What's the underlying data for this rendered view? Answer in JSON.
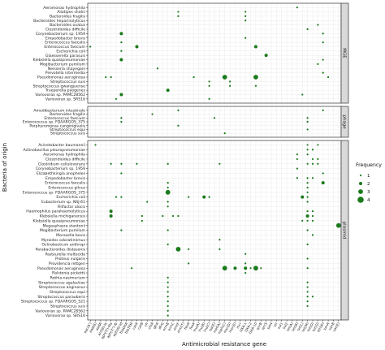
{
  "chart_data": {
    "type": "scatter",
    "xlabel": "Antimicrobial resistance gene",
    "ylabel": "Bacteria of origin",
    "legend": {
      "title": "Frequency",
      "placement": "right",
      "values": [
        "1",
        "2",
        "3",
        "4"
      ]
    },
    "colors": {
      "point": "#1b7a1b",
      "strip": "#d9d9d9",
      "panel_border": "#333333",
      "grid": "#ebebeb"
    },
    "x_categories": [
      "aac(6')",
      "aad(6)",
      "aadA",
      "ant(6)-Ia",
      "aph(3')-IIIa",
      "aph(3'')-Ib",
      "aph(6)-Id",
      "blaOXA",
      "blaTEM",
      "catA",
      "catB",
      "cfr",
      "cfxA",
      "dfrA",
      "dfrG",
      "ermB",
      "ermC",
      "ermF",
      "erm(T)",
      "fexA",
      "fosA",
      "lnu(A)",
      "lnu(B)",
      "lnu(C)",
      "lsa(E)",
      "mef(A)",
      "mph(C)",
      "msr(D)",
      "msr(E)",
      "mcr",
      "OXA-1",
      "OXA-2",
      "OXA-10",
      "qnrB",
      "qnrS",
      "sat4",
      "str",
      "sul1",
      "sul2",
      "tet(A)",
      "tet(B)",
      "tet(L)",
      "tet(M)",
      "tet(O)",
      "tet(Q)",
      "tet(W)",
      "vanA",
      "vanB",
      "vat(E)"
    ],
    "facets": [
      {
        "name": "MGE",
        "rows": [
          "Aeromonas hydrophila",
          "Aliatipes shahii",
          "Bacteroides fragilis",
          "Bacteroides heparinolyticus",
          "Bacteroides ovatus",
          "Clostridioides difficile",
          "Corynebacterium sp. 1959",
          "Empedobacter brevis",
          "Enterococcus faecalis",
          "Enterococcus faecium",
          "Escherichia coli",
          "Glaesserella parasuis",
          "Klebsiella quasipneumoniae",
          "Mogibacterium pumilum",
          "Neisseria shayegani",
          "Prevotella intermedia",
          "Pseudomonas aeruginosa",
          "Streptococcus suis",
          "Streptococcus gwangjuense",
          "Trueperella pyogenes",
          "Variovorax sp. PAMC28562",
          "Variovorax sp. SRS16"
        ],
        "points": [
          [
            "Aeromonas hydrophila",
            "tet(B)",
            1
          ],
          [
            "Aliatipes shahii",
            "ermF",
            1
          ],
          [
            "Aliatipes shahii",
            "OXA-1",
            1
          ],
          [
            "Bacteroides fragilis",
            "ermF",
            1
          ],
          [
            "Bacteroides fragilis",
            "OXA-1",
            1
          ],
          [
            "Bacteroides heparinolyticus",
            "OXA-1",
            1
          ],
          [
            "Bacteroides ovatus",
            "tet(Q)",
            1
          ],
          [
            "Clostridioides difficile",
            "tet(M)",
            1
          ],
          [
            "Corynebacterium sp. 1959",
            "aph(6)-Id",
            2
          ],
          [
            "Corynebacterium sp. 1959",
            "tet(W)",
            1
          ],
          [
            "Empedobacter brevis",
            "OXA-1",
            1
          ],
          [
            "Enterococcus faecalis",
            "aph(6)-Id",
            1
          ],
          [
            "Enterococcus faecalis",
            "tet(W)",
            1
          ],
          [
            "Enterococcus faecium",
            "aac(6')",
            1
          ],
          [
            "Enterococcus faecium",
            "catA",
            2
          ],
          [
            "Enterococcus faecium",
            "OXA-10",
            2
          ],
          [
            "Escherichia coli",
            "aph(6)-Id",
            1
          ],
          [
            "Glaesserella parasuis",
            "qnrS",
            2
          ],
          [
            "Klebsiella quasipneumoniae",
            "aph(6)-Id",
            2
          ],
          [
            "Klebsiella quasipneumoniae",
            "tet(W)",
            1
          ],
          [
            "Mogibacterium pumilum",
            "tet(Q)",
            1
          ],
          [
            "Neisseria shayegani",
            "dfrA",
            1
          ],
          [
            "Prevotella intermedia",
            "tet(W)",
            1
          ],
          [
            "Pseudomonas aeruginosa",
            "ant(6)-Ia",
            1
          ],
          [
            "Pseudomonas aeruginosa",
            "aph(3')-IIIa",
            1
          ],
          [
            "Pseudomonas aeruginosa",
            "fosA",
            1
          ],
          [
            "Pseudomonas aeruginosa",
            "mph(C)",
            3
          ],
          [
            "Pseudomonas aeruginosa",
            "OXA-10",
            3
          ],
          [
            "Pseudomonas aeruginosa",
            "vanA",
            1
          ],
          [
            "Streptococcus suis",
            "lnu(C)",
            1
          ],
          [
            "Streptococcus suis",
            "msr(D)",
            1
          ],
          [
            "Streptococcus gwangjuense",
            "lnu(C)",
            1
          ],
          [
            "Streptococcus gwangjuense",
            "msr(D)",
            1
          ],
          [
            "Streptococcus gwangjuense",
            "OXA-10",
            1
          ],
          [
            "Trueperella pyogenes",
            "ermB",
            2
          ],
          [
            "Variovorax sp. PAMC28562",
            "aph(6)-Id",
            2
          ],
          [
            "Variovorax sp. PAMC28562",
            "tet(L)",
            1
          ],
          [
            "Variovorax sp. SRS16",
            "aph(3'')-Ib",
            1
          ],
          [
            "Variovorax sp. SRS16",
            "lnu(C)",
            1
          ]
        ]
      },
      {
        "name": "phage",
        "rows": [
          "Amedibacterium intestinale",
          "Bacteroides fragilis",
          "Enterococcus faecium",
          "Enterococcus sp. FDAARGOS_375",
          "Porphyromonas canginigivalis",
          "Streptococcus equi",
          "Streptococcus suis"
        ],
        "points": [
          [
            "Amedibacterium intestinale",
            "ermF",
            1
          ],
          [
            "Amedibacterium intestinale",
            "tet(W)",
            1
          ],
          [
            "Bacteroides fragilis",
            "cfxA",
            1
          ],
          [
            "Enterococcus faecium",
            "aph(6)-Id",
            1
          ],
          [
            "Enterococcus faecium",
            "lsa(E)",
            1
          ],
          [
            "Enterococcus faecium",
            "tet(M)",
            1
          ],
          [
            "Enterococcus sp. FDAARGOS_375",
            "aph(6)-Id",
            1
          ],
          [
            "Enterococcus sp. FDAARGOS_375",
            "tet(M)",
            1
          ],
          [
            "Porphyromonas canginigivalis",
            "ermF",
            1
          ],
          [
            "Streptococcus equi",
            "tet(M)",
            1
          ],
          [
            "Streptococcus suis",
            "mph(C)",
            1
          ]
        ]
      },
      {
        "name": "plasmid",
        "rows": [
          "Acinetobacter baumannii",
          "Actinobacillus pleuropneumoniae",
          "Aeromonas hydrophila",
          "Clostridioides difficile",
          "Clostridium cellulovorans",
          "Corynebacterium sp. 1959",
          "Elizabethkingia anopheles",
          "Empedobacter brevis",
          "Enterococcus faecalis",
          "Enterococcus gilvus",
          "Enterococcus sp. FDAARGOS_375",
          "Escherichia coli",
          "Eubacterium sp. NSJ-61",
          "Filifactor alocis",
          "Haemophilus parahaemolyticus",
          "Klebsiella michiganensis",
          "Klebsiella quasipneumoniae",
          "Megasphaera stantonii",
          "Mogibacterium pumilum",
          "Moraxella bovis",
          "Myroides odoratimimus",
          "Ochrobactrum anthropi",
          "Parabacteroides distasonis",
          "Pasteurella multocida",
          "Proteus vulgaris",
          "Providencia rettgeri",
          "Pseudomonas aeruginosa",
          "Ralstonia pickettii",
          "Rothia nasimurium",
          "Streptococcus agalactiae",
          "Streptococcus anginosus",
          "Streptococcus equi",
          "Streptococcus parauberis",
          "Streptococcus sp. FDAARGOS_521",
          "Streptococcus suis",
          "Variovorax sp. PAMC28562",
          "Variovorax sp. SRS16"
        ],
        "points": [
          [
            "Acinetobacter baumannii",
            "aad(6)",
            1
          ],
          [
            "Acinetobacter baumannii",
            "tet(M)",
            1
          ],
          [
            "Acinetobacter baumannii",
            "tet(Q)",
            1
          ],
          [
            "Actinobacillus pleuropneumoniae",
            "tet(M)",
            1
          ],
          [
            "Actinobacillus pleuropneumoniae",
            "tet(O)",
            1
          ],
          [
            "Aeromonas hydrophila",
            "tet(B)",
            1
          ],
          [
            "Aeromonas hydrophila",
            "tet(M)",
            1
          ],
          [
            "Clostridioides difficile",
            "tet(B)",
            1
          ],
          [
            "Clostridioides difficile",
            "tet(O)",
            1
          ],
          [
            "Clostridioides difficile",
            "tet(Q)",
            1
          ],
          [
            "Clostridium cellulovorans",
            "aph(3')-IIIa",
            1
          ],
          [
            "Clostridium cellulovorans",
            "aph(6)-Id",
            1
          ],
          [
            "Clostridium cellulovorans",
            "catA",
            1
          ],
          [
            "Clostridium cellulovorans",
            "ermB",
            1
          ],
          [
            "Clostridium cellulovorans",
            "mef(A)",
            1
          ],
          [
            "Clostridium cellulovorans",
            "tet(M)",
            1
          ],
          [
            "Clostridium cellulovorans",
            "tet(O)",
            1
          ],
          [
            "Clostridium cellulovorans",
            "tet(Q)",
            1
          ],
          [
            "Corynebacterium sp. 1959",
            "tet(B)",
            1
          ],
          [
            "Elizabethkingia anopheles",
            "aph(6)-Id",
            1
          ],
          [
            "Elizabethkingia anopheles",
            "tet(W)",
            1
          ],
          [
            "Empedobacter brevis",
            "tet(B)",
            1
          ],
          [
            "Empedobacter brevis",
            "tet(M)",
            1
          ],
          [
            "Empedobacter brevis",
            "tet(O)",
            1
          ],
          [
            "Enterococcus faecalis",
            "ermB",
            1
          ],
          [
            "Enterococcus faecalis",
            "tet(M)",
            1
          ],
          [
            "Enterococcus faecalis",
            "tet(W)",
            2
          ],
          [
            "Enterococcus gilvus",
            "ermB",
            1
          ],
          [
            "Enterococcus gilvus",
            "tet(M)",
            1
          ],
          [
            "Enterococcus sp. FDAARGOS_375",
            "ermB",
            3
          ],
          [
            "Enterococcus sp. FDAARGOS_375",
            "tet(M)",
            1
          ],
          [
            "Escherichia coli",
            "aph(3'')-Ib",
            1
          ],
          [
            "Escherichia coli",
            "aph(6)-Id",
            1
          ],
          [
            "Escherichia coli",
            "fexA",
            1
          ],
          [
            "Escherichia coli",
            "lnu(B)",
            2
          ],
          [
            "Escherichia coli",
            "lnu(C)",
            1
          ],
          [
            "Escherichia coli",
            "tet(L)",
            2
          ],
          [
            "Escherichia coli",
            "tet(M)",
            1
          ],
          [
            "Eubacterium sp. NSJ-61",
            "cfr",
            1
          ],
          [
            "Eubacterium sp. NSJ-61",
            "ermB",
            1
          ],
          [
            "Eubacterium sp. NSJ-61",
            "tet(M)",
            1
          ],
          [
            "Filifactor alocis",
            "ermB",
            1
          ],
          [
            "Haemophilus parahaemolyticus",
            "aph(3')-IIIa",
            2
          ],
          [
            "Haemophilus parahaemolyticus",
            "tet(M)",
            1
          ],
          [
            "Haemophilus parahaemolyticus",
            "tet(O)",
            1
          ],
          [
            "Klebsiella michiganensis",
            "aph(3')-IIIa",
            2
          ],
          [
            "Klebsiella michiganensis",
            "catB",
            1
          ],
          [
            "Klebsiella michiganensis",
            "dfrG",
            1
          ],
          [
            "Klebsiella michiganensis",
            "ermF",
            1
          ],
          [
            "Klebsiella michiganensis",
            "ermC",
            1
          ],
          [
            "Klebsiella michiganensis",
            "tet(M)",
            2
          ],
          [
            "Klebsiella michiganensis",
            "tet(O)",
            1
          ],
          [
            "Klebsiella quasipneumoniae",
            "catB",
            1
          ],
          [
            "Klebsiella quasipneumoniae",
            "tet(L)",
            1
          ],
          [
            "Klebsiella quasipneumoniae",
            "tet(M)",
            1
          ],
          [
            "Klebsiella quasipneumoniae",
            "tet(O)",
            1
          ],
          [
            "Megasphaera stantonii",
            "vat(E)",
            3
          ],
          [
            "Mogibacterium pumilum",
            "aph(6)-Id",
            1
          ],
          [
            "Mogibacterium pumilum",
            "ermB",
            1
          ],
          [
            "Mogibacterium pumilum",
            "tet(M)",
            1
          ],
          [
            "Moraxella bovis",
            "tet(O)",
            1
          ],
          [
            "Myroides odoratimimus",
            "mef(A)",
            1
          ],
          [
            "Ochrobactrum anthropi",
            "ermB",
            1
          ],
          [
            "Ochrobactrum anthropi",
            "tet(M)",
            1
          ],
          [
            "Parabacteroides distasonis",
            "ermF",
            3
          ],
          [
            "Parabacteroides distasonis",
            "fexA",
            1
          ],
          [
            "Parabacteroides distasonis",
            "mef(A)",
            1
          ],
          [
            "Pasteurella multocida",
            "OXA-1",
            1
          ],
          [
            "Proteus vulgaris",
            "tet(M)",
            1
          ],
          [
            "Providencia rettgeri",
            "fexA",
            1
          ],
          [
            "Providencia rettgeri",
            "OXA-1",
            1
          ],
          [
            "Pseudomonas aeruginosa",
            "blaTEM",
            1
          ],
          [
            "Pseudomonas aeruginosa",
            "mph(C)",
            3
          ],
          [
            "Pseudomonas aeruginosa",
            "msr(E)",
            2
          ],
          [
            "Pseudomonas aeruginosa",
            "OXA-1",
            2
          ],
          [
            "Pseudomonas aeruginosa",
            "OXA-2",
            1
          ],
          [
            "Pseudomonas aeruginosa",
            "OXA-10",
            3
          ],
          [
            "Pseudomonas aeruginosa",
            "qnrB",
            1
          ],
          [
            "Pseudomonas aeruginosa",
            "tet(M)",
            1
          ],
          [
            "Ralstonia pickettii",
            "OXA-1",
            1
          ],
          [
            "Rothia nasimurium",
            "ermB",
            1
          ],
          [
            "Streptococcus agalactiae",
            "ermB",
            1
          ],
          [
            "Streptococcus agalactiae",
            "tet(M)",
            1
          ],
          [
            "Streptococcus anginosus",
            "ermB",
            1
          ],
          [
            "Streptococcus anginosus",
            "tet(M)",
            1
          ],
          [
            "Streptococcus equi",
            "ermB",
            1
          ],
          [
            "Streptococcus equi",
            "tet(M)",
            1
          ],
          [
            "Streptococcus parauberis",
            "ermB",
            1
          ],
          [
            "Streptococcus parauberis",
            "tet(M)",
            1
          ],
          [
            "Streptococcus parauberis",
            "tet(O)",
            1
          ],
          [
            "Streptococcus sp. FDAARGOS_521",
            "ermB",
            1
          ],
          [
            "Streptococcus sp. FDAARGOS_521",
            "tet(M)",
            1
          ],
          [
            "Streptococcus suis",
            "ermB",
            1
          ],
          [
            "Streptococcus suis",
            "tet(M)",
            1
          ],
          [
            "Variovorax sp. PAMC28562",
            "ermB",
            1
          ],
          [
            "Variovorax sp. SRS16",
            "ermB",
            1
          ]
        ]
      }
    ]
  }
}
